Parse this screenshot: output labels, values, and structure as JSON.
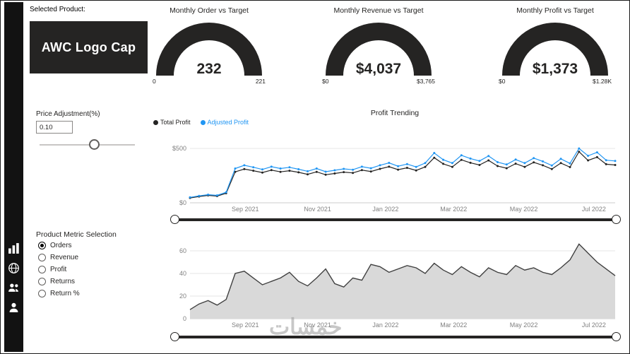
{
  "sidebar": {
    "icons": [
      {
        "name": "bar-chart"
      },
      {
        "name": "globe"
      },
      {
        "name": "users"
      },
      {
        "name": "person"
      }
    ]
  },
  "header": {
    "selected_product_label": "Selected Product:",
    "product_name": "AWC Logo Cap"
  },
  "gauges": [
    {
      "title": "Monthly Order vs Target",
      "value": "232",
      "min": "0",
      "max": "221"
    },
    {
      "title": "Monthly Revenue vs Target",
      "value": "$4,037",
      "min": "$0",
      "max": "$3,765"
    },
    {
      "title": "Monthly Profit vs Target",
      "value": "$1,373",
      "min": "$0",
      "max": "$1.28K"
    }
  ],
  "price_adjustment": {
    "label": "Price Adjustment(%)",
    "value": "0.10"
  },
  "metric_selection": {
    "label": "Product Metric Selection",
    "options": [
      {
        "label": "Orders",
        "selected": true
      },
      {
        "label": "Revenue",
        "selected": false
      },
      {
        "label": "Profit",
        "selected": false
      },
      {
        "label": "Returns",
        "selected": false
      },
      {
        "label": "Return %",
        "selected": false
      }
    ]
  },
  "watermark": "خمسات",
  "colors": {
    "dark": "#252423",
    "blue": "#2196F3",
    "area_fill": "#d9d9d9"
  },
  "chart_data": [
    {
      "type": "line",
      "title": "Profit Trending",
      "markers": true,
      "legend": [
        {
          "name": "Total Profit",
          "color": "#252423",
          "text_color": "#252423"
        },
        {
          "name": "Adjusted Profit",
          "color": "#2196F3",
          "text_color": "#2196F3"
        }
      ],
      "ylim": [
        0,
        520
      ],
      "y_ticks": [
        {
          "value": 0,
          "label": "$0"
        },
        {
          "value": 500,
          "label": "$500"
        }
      ],
      "x_ticks": {
        "labels": [
          "Sep 2021",
          "Nov 2021",
          "Jan 2022",
          "Mar 2022",
          "May 2022",
          "Jul 2022"
        ],
        "fractions": [
          0.13,
          0.3,
          0.46,
          0.62,
          0.785,
          0.95
        ]
      },
      "series": [
        {
          "name": "Total Profit",
          "color": "#252423",
          "values": [
            45,
            58,
            68,
            62,
            88,
            285,
            310,
            295,
            278,
            300,
            285,
            295,
            280,
            262,
            285,
            258,
            270,
            282,
            275,
            300,
            288,
            312,
            332,
            305,
            322,
            298,
            330,
            415,
            358,
            330,
            395,
            368,
            348,
            390,
            338,
            318,
            360,
            330,
            372,
            345,
            310,
            365,
            328,
            470,
            390,
            420,
            355,
            348
          ]
        },
        {
          "name": "Adjusted Profit",
          "color": "#2196F3",
          "values": [
            50,
            64,
            75,
            68,
            97,
            315,
            345,
            327,
            307,
            332,
            315,
            326,
            309,
            290,
            315,
            286,
            299,
            312,
            304,
            332,
            318,
            345,
            367,
            337,
            356,
            330,
            365,
            458,
            396,
            365,
            437,
            407,
            385,
            431,
            374,
            352,
            398,
            365,
            411,
            381,
            343,
            404,
            363,
            500,
            432,
            464,
            392,
            385
          ]
        }
      ]
    },
    {
      "type": "area",
      "title": "",
      "markers": false,
      "ylim": [
        0,
        70
      ],
      "y_ticks": [
        {
          "value": 0,
          "label": "0"
        },
        {
          "value": 20,
          "label": "20"
        },
        {
          "value": 40,
          "label": "40"
        },
        {
          "value": 60,
          "label": "60"
        }
      ],
      "x_ticks": {
        "labels": [
          "Sep 2021",
          "Nov 2021",
          "Jan 2022",
          "Mar 2022",
          "May 2022",
          "Jul 2022"
        ],
        "fractions": [
          0.13,
          0.3,
          0.46,
          0.62,
          0.785,
          0.95
        ]
      },
      "series": [
        {
          "name": "Orders",
          "color": "#404040",
          "fill": "#d9d9d9",
          "values": [
            8,
            13,
            16,
            12,
            17,
            40,
            42,
            36,
            30,
            33,
            36,
            41,
            33,
            29,
            36,
            44,
            31,
            28,
            36,
            34,
            48,
            46,
            41,
            44,
            47,
            45,
            40,
            49,
            43,
            39,
            46,
            41,
            37,
            45,
            41,
            39,
            47,
            43,
            45,
            41,
            39,
            45,
            52,
            66,
            58,
            50,
            44,
            38
          ]
        }
      ]
    }
  ]
}
